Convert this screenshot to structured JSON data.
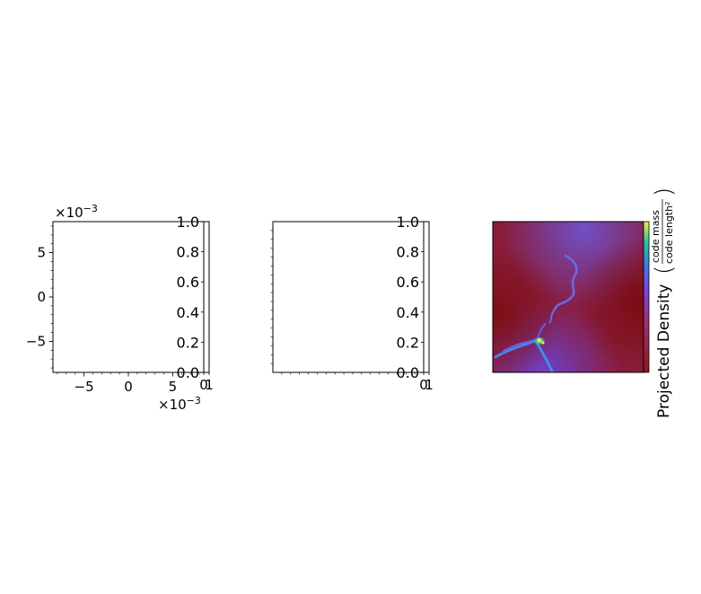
{
  "chart_data": [
    {
      "type": "scatter",
      "panel": "left",
      "x_offset_label": "×10",
      "x_offset_exp": "−3",
      "y_offset_label": "×10",
      "y_offset_exp": "−3",
      "xlim": [
        -0.0085,
        0.0085
      ],
      "ylim": [
        -0.0085,
        0.0085
      ],
      "x_ticks": [
        -0.005,
        0.0,
        0.005
      ],
      "x_tick_labels": [
        "−5",
        "0",
        "5"
      ],
      "y_ticks": [
        -0.005,
        0.0,
        0.005
      ],
      "y_tick_labels": [
        "−5",
        "0",
        "5"
      ],
      "series": [],
      "colorbar": {
        "ticks": [
          0.0,
          0.2,
          0.4,
          0.6,
          0.8,
          1.0
        ],
        "tick_labels": [
          "0.0",
          "0.2",
          "0.4",
          "0.6",
          "0.8",
          "1.0"
        ],
        "x_tick_labels": [
          "0",
          "1"
        ]
      }
    },
    {
      "type": "scatter",
      "panel": "middle",
      "series": [],
      "colorbar": {
        "ticks": [
          0.0,
          0.2,
          0.4,
          0.6,
          0.8,
          1.0
        ],
        "tick_labels": [
          "0.0",
          "0.2",
          "0.4",
          "0.6",
          "0.8",
          "1.0"
        ],
        "x_tick_labels": [
          "0",
          "1"
        ]
      }
    },
    {
      "type": "heatmap",
      "panel": "right",
      "colormap": [
        "#8b0000",
        "#7a3cd0",
        "#2f7de0",
        "#30c0a0",
        "#e8f040"
      ],
      "background_color": "#8a1c3a",
      "colorbar": {
        "label": "Projected Density",
        "unit_numerator": "code mass",
        "unit_denominator": "code length²"
      }
    }
  ]
}
